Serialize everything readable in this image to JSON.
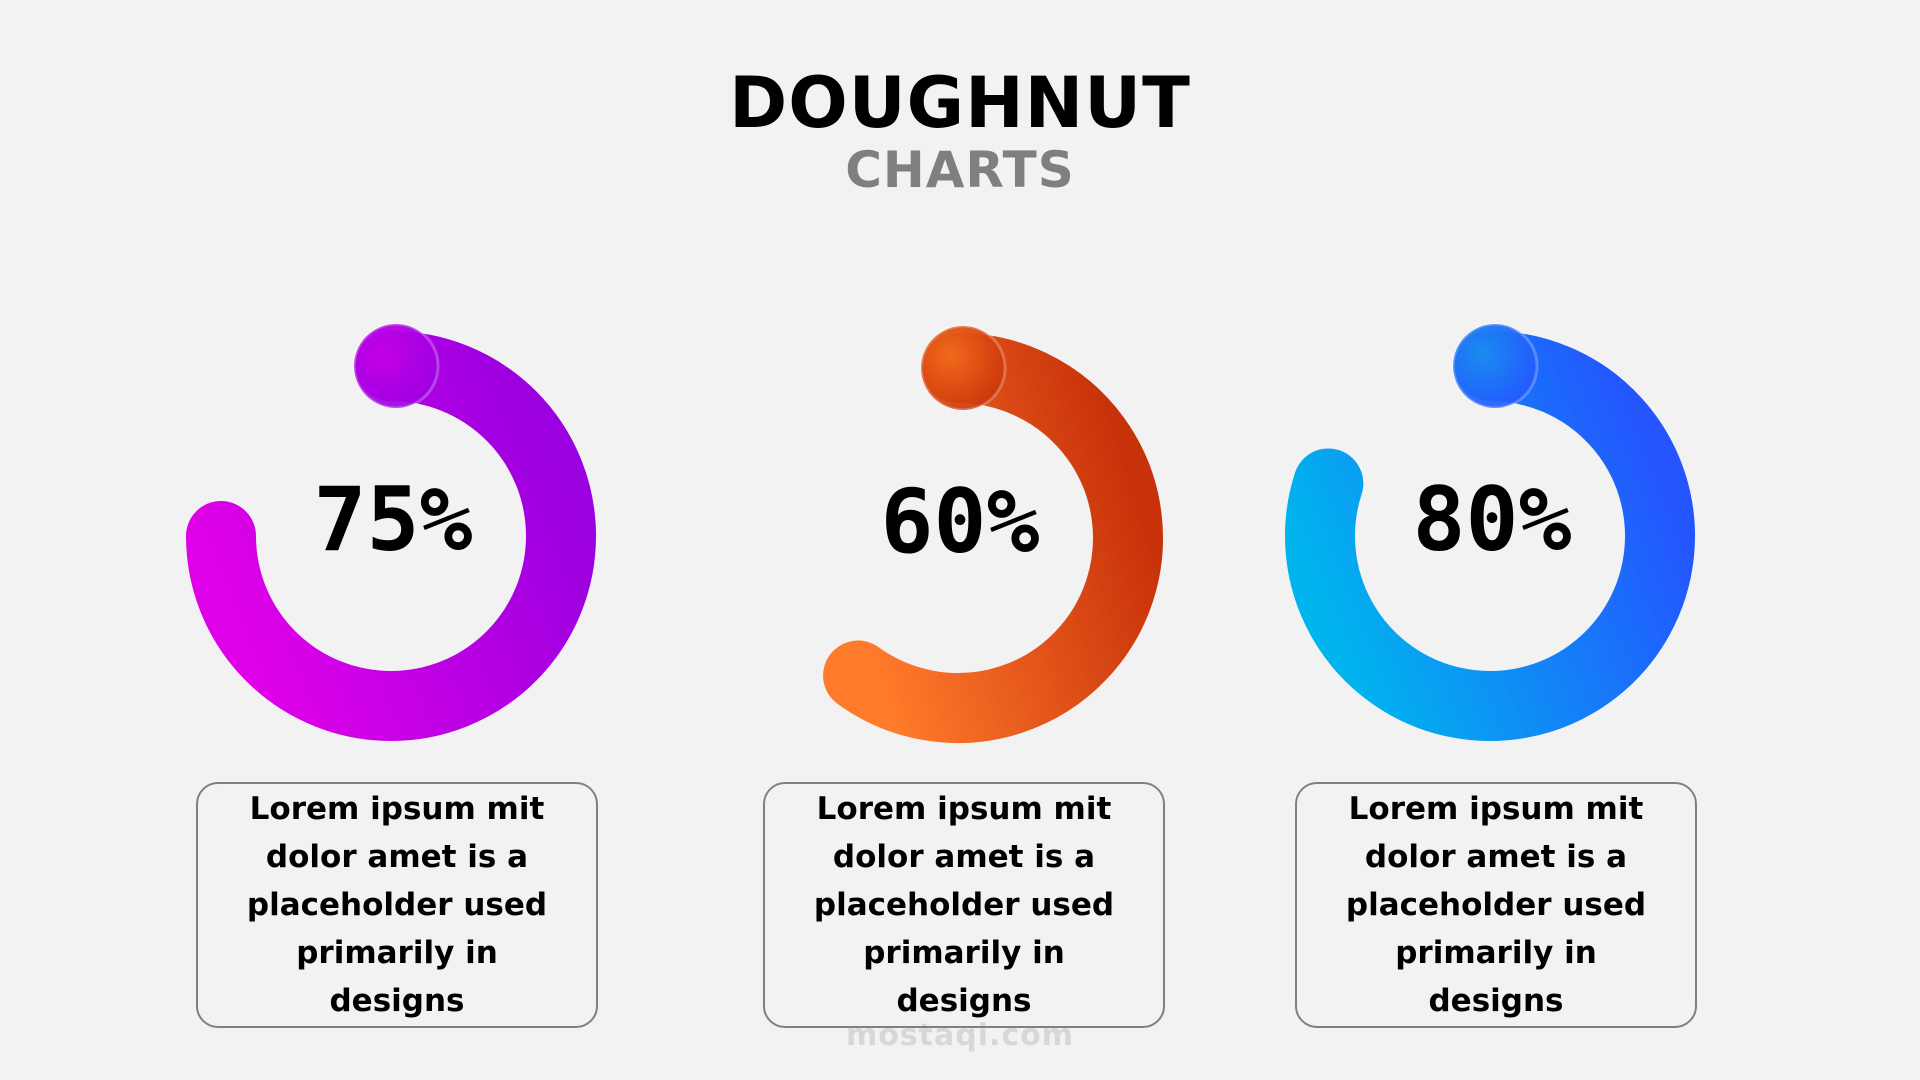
{
  "header": {
    "title": "DOUGHNUT",
    "subtitle": "CHARTS"
  },
  "chart_data": [
    {
      "type": "doughnut",
      "value_percent": 75,
      "label": "75%",
      "color_start": "#e000e8",
      "color_end": "#9a00e0",
      "knob_color": "#c400e8"
    },
    {
      "type": "doughnut",
      "value_percent": 60,
      "label": "60%",
      "color_start": "#ff7a2a",
      "color_end": "#c8320a",
      "knob_color": "#f26a1c"
    },
    {
      "type": "doughnut",
      "value_percent": 80,
      "label": "80%",
      "color_start": "#00b4ee",
      "color_end": "#2455ff",
      "knob_color": "#1a8cf0"
    }
  ],
  "cards": [
    {
      "text": "Lorem ipsum mit dolor amet is a placeholder used primarily in designs"
    },
    {
      "text": "Lorem ipsum mit dolor amet is a placeholder used primarily in designs"
    },
    {
      "text": "Lorem ipsum mit dolor amet is a placeholder used primarily in designs"
    }
  ],
  "watermark": {
    "text": "mostaqi.com"
  }
}
